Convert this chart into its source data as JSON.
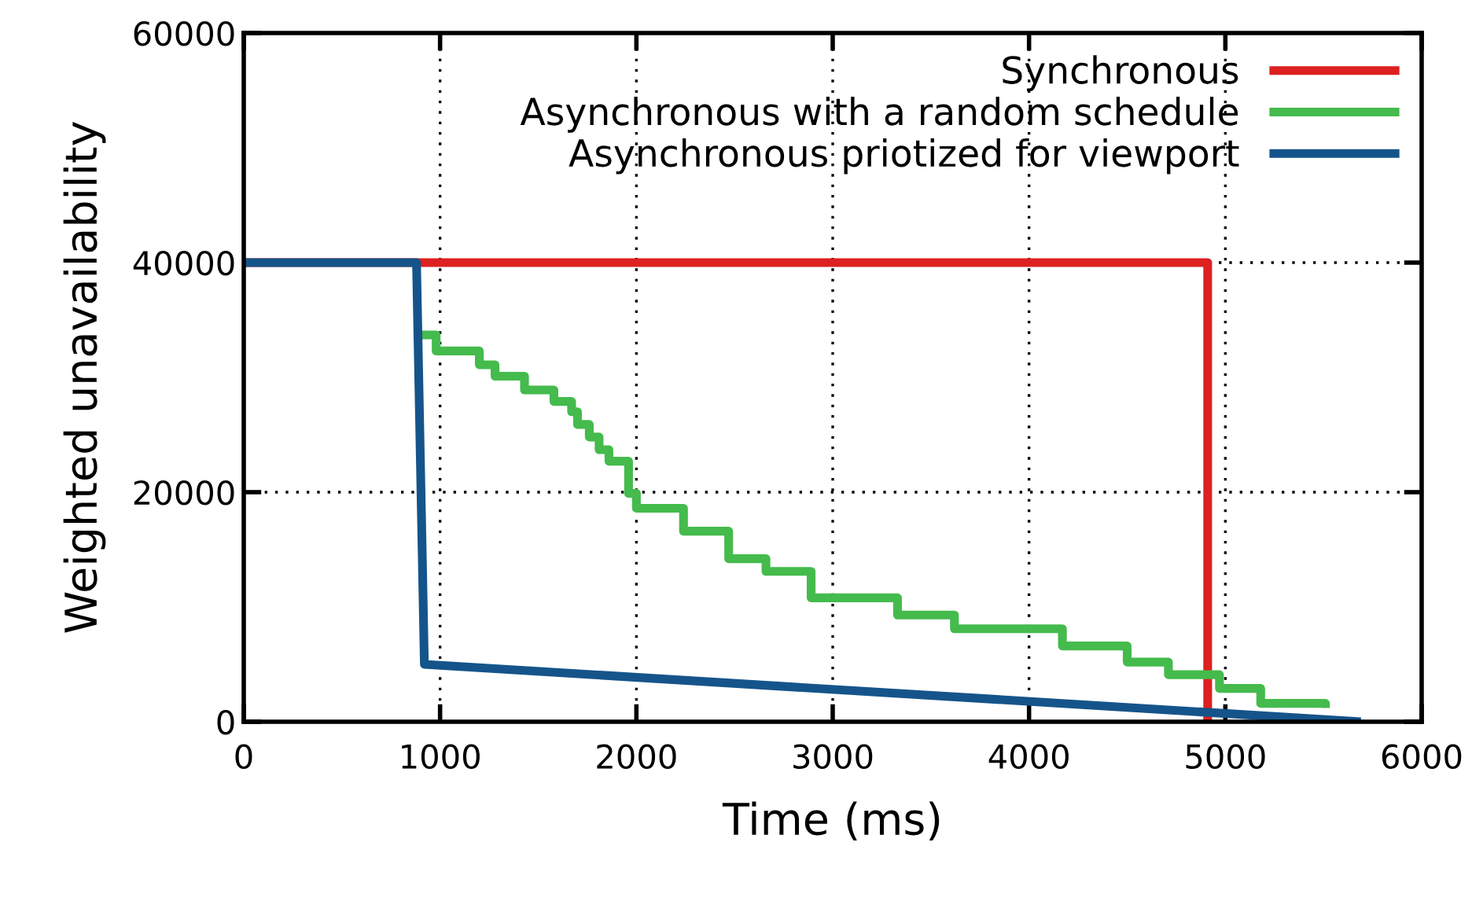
{
  "chart_data": {
    "type": "line",
    "xlabel": "Time (ms)",
    "ylabel": "Weighted unavailability",
    "xlim": [
      0,
      6000
    ],
    "xticks": [
      0,
      1000,
      2000,
      3000,
      4000,
      5000,
      6000
    ],
    "ylim": [
      0,
      60000
    ],
    "yticks": [
      0,
      20000,
      40000,
      60000
    ],
    "grid": true,
    "legend": "top right",
    "line_style": "solid",
    "series": [
      {
        "name": "Synchronous",
        "color": "#dd2020",
        "x": [
          0,
          4910,
          4910
        ],
        "values": [
          40000,
          40000,
          0
        ]
      },
      {
        "name": "Asynchronous with a random schedule",
        "color": "#44bb4c",
        "type": "step",
        "x": [
          890,
          980,
          1200,
          1280,
          1430,
          1580,
          1670,
          1700,
          1760,
          1810,
          1860,
          1960,
          2000,
          2240,
          2470,
          2660,
          2890,
          3330,
          3620,
          4170,
          4500,
          4710,
          4970,
          5180,
          5510
        ],
        "values": [
          33700,
          32300,
          31100,
          30100,
          28900,
          27900,
          27000,
          25900,
          24800,
          23700,
          22700,
          19900,
          18600,
          16600,
          14200,
          13100,
          10800,
          9300,
          8100,
          6600,
          5200,
          4100,
          2900,
          1600,
          1200
        ]
      },
      {
        "name": "Asynchronous priotized for viewport",
        "color": "#15548a",
        "x": [
          0,
          880,
          920,
          5690
        ],
        "values": [
          40000,
          40000,
          5000,
          0
        ]
      }
    ]
  }
}
